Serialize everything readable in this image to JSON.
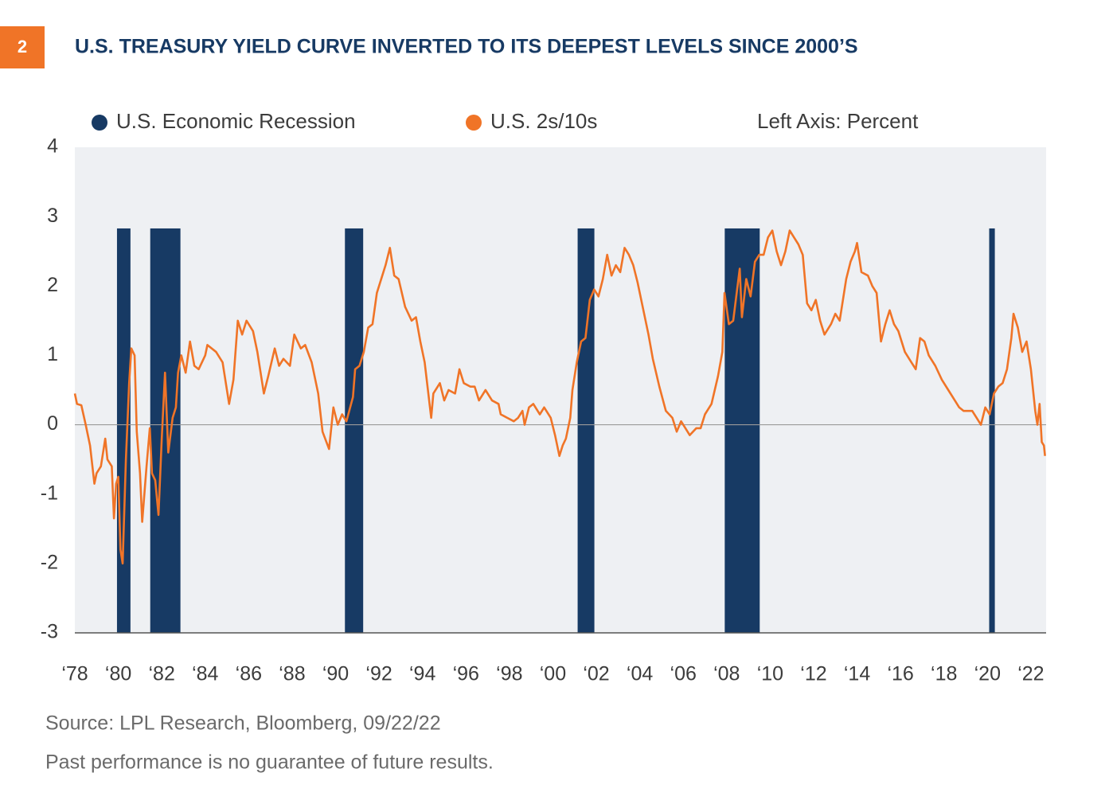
{
  "chart_data": {
    "type": "line",
    "chart_number": "2",
    "title": "U.S. TREASURY YIELD CURVE INVERTED TO ITS DEEPEST LEVELS SINCE 2000’S",
    "y_axis_label": "Left Axis: Percent",
    "source": "Source:  LPL Research, Bloomberg,  09/22/22",
    "note": "Past performance is no guarantee of future results.",
    "xlim": [
      1978,
      2022.7
    ],
    "ylim": [
      -3,
      4
    ],
    "yticks": [
      -3,
      -2,
      -1,
      0,
      1,
      2,
      3,
      4
    ],
    "xticks": [
      {
        "value": 1978,
        "label": "‘78"
      },
      {
        "value": 1980,
        "label": "‘80"
      },
      {
        "value": 1982,
        "label": "‘82"
      },
      {
        "value": 1984,
        "label": "‘84"
      },
      {
        "value": 1986,
        "label": "‘86"
      },
      {
        "value": 1988,
        "label": "‘88"
      },
      {
        "value": 1990,
        "label": "‘90"
      },
      {
        "value": 1992,
        "label": "‘92"
      },
      {
        "value": 1994,
        "label": "‘94"
      },
      {
        "value": 1996,
        "label": "‘96"
      },
      {
        "value": 1998,
        "label": "‘98"
      },
      {
        "value": 2000,
        "label": "‘00"
      },
      {
        "value": 2002,
        "label": "‘02"
      },
      {
        "value": 2004,
        "label": "‘04"
      },
      {
        "value": 2006,
        "label": "‘06"
      },
      {
        "value": 2008,
        "label": "‘08"
      },
      {
        "value": 2010,
        "label": "‘10"
      },
      {
        "value": 2012,
        "label": "‘12"
      },
      {
        "value": 2014,
        "label": "‘14"
      },
      {
        "value": 2016,
        "label": "‘16"
      },
      {
        "value": 2018,
        "label": "‘18"
      },
      {
        "value": 2020,
        "label": "‘20"
      },
      {
        "value": 2022,
        "label": "‘22"
      }
    ],
    "zero_line": true,
    "series": [
      {
        "name": "U.S. Economic Recession",
        "color": "#173a64",
        "type": "band",
        "start": [
          1979.94,
          1981.47,
          1990.43,
          2001.14,
          2007.91,
          2020.08
        ],
        "end": [
          1980.56,
          1982.86,
          1991.27,
          2001.91,
          2009.52,
          2020.34
        ],
        "values": [
          2.83,
          2.83,
          2.83,
          2.83,
          2.83,
          2.83
        ]
      },
      {
        "name": "U.S. 2s/10s",
        "color": "#f07427",
        "type": "line",
        "x": [
          1978.0,
          1978.1,
          1978.3,
          1978.5,
          1978.7,
          1978.9,
          1979.0,
          1979.2,
          1979.4,
          1979.5,
          1979.7,
          1979.8,
          1979.9,
          1980.0,
          1980.1,
          1980.2,
          1980.35,
          1980.5,
          1980.6,
          1980.75,
          1980.85,
          1981.0,
          1981.1,
          1981.3,
          1981.45,
          1981.55,
          1981.7,
          1981.85,
          1982.0,
          1982.15,
          1982.3,
          1982.5,
          1982.65,
          1982.75,
          1982.9,
          1983.1,
          1983.3,
          1983.5,
          1983.7,
          1984.0,
          1984.1,
          1984.5,
          1984.8,
          1985.1,
          1985.3,
          1985.5,
          1985.7,
          1985.9,
          1986.2,
          1986.4,
          1986.7,
          1986.9,
          1987.2,
          1987.4,
          1987.6,
          1987.9,
          1988.1,
          1988.4,
          1988.6,
          1988.9,
          1989.2,
          1989.4,
          1989.7,
          1989.9,
          1990.1,
          1990.3,
          1990.5,
          1990.8,
          1990.9,
          1991.1,
          1991.3,
          1991.5,
          1991.7,
          1991.9,
          1992.1,
          1992.3,
          1992.5,
          1992.7,
          1992.9,
          1993.2,
          1993.5,
          1993.7,
          1993.9,
          1994.1,
          1994.4,
          1994.5,
          1994.8,
          1995.0,
          1995.2,
          1995.5,
          1995.7,
          1995.9,
          1996.2,
          1996.4,
          1996.6,
          1996.9,
          1997.2,
          1997.5,
          1997.6,
          1997.9,
          1998.2,
          1998.4,
          1998.6,
          1998.7,
          1998.9,
          1999.1,
          1999.4,
          1999.6,
          1999.9,
          2000.1,
          2000.3,
          2000.45,
          2000.6,
          2000.8,
          2000.9,
          2001.1,
          2001.3,
          2001.5,
          2001.7,
          2001.9,
          2002.1,
          2002.3,
          2002.5,
          2002.7,
          2002.9,
          2003.1,
          2003.3,
          2003.5,
          2003.7,
          2003.9,
          2004.2,
          2004.4,
          2004.6,
          2004.9,
          2005.2,
          2005.5,
          2005.7,
          2005.9,
          2006.1,
          2006.3,
          2006.6,
          2006.8,
          2007.0,
          2007.3,
          2007.6,
          2007.8,
          2007.9,
          2008.1,
          2008.3,
          2008.6,
          2008.7,
          2008.9,
          2009.1,
          2009.3,
          2009.5,
          2009.7,
          2009.9,
          2010.1,
          2010.3,
          2010.5,
          2010.7,
          2010.9,
          2011.1,
          2011.3,
          2011.5,
          2011.7,
          2011.9,
          2012.1,
          2012.3,
          2012.5,
          2012.8,
          2013.0,
          2013.2,
          2013.5,
          2013.7,
          2013.9,
          2014.0,
          2014.2,
          2014.5,
          2014.7,
          2014.9,
          2015.1,
          2015.3,
          2015.5,
          2015.7,
          2015.9,
          2016.2,
          2016.5,
          2016.7,
          2016.9,
          2017.1,
          2017.3,
          2017.6,
          2017.9,
          2018.2,
          2018.5,
          2018.7,
          2018.9,
          2019.1,
          2019.3,
          2019.5,
          2019.7,
          2019.9,
          2020.1,
          2020.3,
          2020.5,
          2020.7,
          2020.9,
          2021.1,
          2021.2,
          2021.4,
          2021.6,
          2021.8,
          2022.0,
          2022.2,
          2022.3,
          2022.4,
          2022.5,
          2022.6,
          2022.65
        ],
        "values": [
          0.45,
          0.3,
          0.28,
          0.0,
          -0.3,
          -0.85,
          -0.7,
          -0.6,
          -0.2,
          -0.5,
          -0.6,
          -1.35,
          -0.85,
          -0.75,
          -1.8,
          -2.0,
          -0.5,
          0.6,
          1.1,
          1.0,
          -0.1,
          -0.7,
          -1.4,
          -0.6,
          -0.05,
          -0.7,
          -0.8,
          -1.3,
          -0.2,
          0.75,
          -0.4,
          0.1,
          0.25,
          0.75,
          1.0,
          0.75,
          1.2,
          0.85,
          0.8,
          1.0,
          1.15,
          1.05,
          0.9,
          0.3,
          0.65,
          1.5,
          1.3,
          1.5,
          1.35,
          1.05,
          0.45,
          0.7,
          1.1,
          0.85,
          0.95,
          0.85,
          1.3,
          1.1,
          1.15,
          0.9,
          0.45,
          -0.1,
          -0.35,
          0.25,
          0.0,
          0.15,
          0.05,
          0.4,
          0.8,
          0.85,
          1.05,
          1.4,
          1.45,
          1.9,
          2.1,
          2.3,
          2.55,
          2.15,
          2.1,
          1.7,
          1.5,
          1.55,
          1.2,
          0.9,
          0.1,
          0.45,
          0.6,
          0.35,
          0.5,
          0.45,
          0.8,
          0.6,
          0.55,
          0.55,
          0.35,
          0.5,
          0.35,
          0.3,
          0.15,
          0.1,
          0.05,
          0.1,
          0.2,
          0.0,
          0.25,
          0.3,
          0.15,
          0.25,
          0.1,
          -0.15,
          -0.45,
          -0.3,
          -0.2,
          0.1,
          0.5,
          0.9,
          1.2,
          1.25,
          1.8,
          1.95,
          1.85,
          2.1,
          2.45,
          2.15,
          2.3,
          2.2,
          2.55,
          2.45,
          2.3,
          2.05,
          1.6,
          1.3,
          0.95,
          0.55,
          0.2,
          0.1,
          -0.1,
          0.05,
          -0.05,
          -0.15,
          -0.05,
          -0.05,
          0.15,
          0.3,
          0.7,
          1.05,
          1.9,
          1.45,
          1.5,
          2.25,
          1.55,
          2.1,
          1.85,
          2.35,
          2.45,
          2.45,
          2.7,
          2.8,
          2.5,
          2.3,
          2.5,
          2.8,
          2.7,
          2.6,
          2.45,
          1.75,
          1.65,
          1.8,
          1.5,
          1.3,
          1.45,
          1.6,
          1.5,
          2.1,
          2.35,
          2.5,
          2.62,
          2.2,
          2.15,
          2.0,
          1.9,
          1.2,
          1.45,
          1.65,
          1.45,
          1.35,
          1.05,
          0.9,
          0.8,
          1.25,
          1.2,
          1.0,
          0.85,
          0.65,
          0.5,
          0.35,
          0.25,
          0.2,
          0.2,
          0.2,
          0.1,
          0.0,
          0.25,
          0.15,
          0.45,
          0.55,
          0.6,
          0.8,
          1.25,
          1.6,
          1.4,
          1.05,
          1.2,
          0.8,
          0.2,
          0.0,
          0.3,
          -0.25,
          -0.3,
          -0.45
        ]
      }
    ]
  }
}
